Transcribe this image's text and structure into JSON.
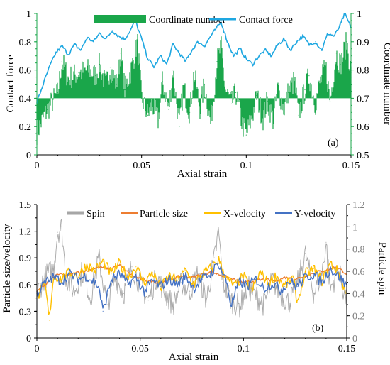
{
  "chart_data": [
    {
      "type": "area+line",
      "panel_label": "(a)",
      "xlabel": "Axial strain",
      "ylabel_left": "Contact force",
      "ylabel_right": "Coordinate number",
      "xlim": [
        0,
        0.15
      ],
      "ylim_left": [
        0,
        1
      ],
      "ylim_right": [
        0.5,
        1
      ],
      "x_ticks": [
        "0",
        "0.05",
        "0.1",
        "0.15"
      ],
      "y_ticks_left": [
        "0",
        "0.2",
        "0.4",
        "0.6",
        "0.8",
        "1"
      ],
      "y_ticks_right": [
        "0.5",
        "0.6",
        "0.7",
        "0.8",
        "0.9",
        "1"
      ],
      "legend_position": "top",
      "legend": [
        "Coordinate number",
        "Contact force"
      ],
      "baseline_right": 0.7,
      "series": [
        {
          "name": "Coordinate number",
          "axis": "right",
          "style": "fill-from-baseline",
          "color": "#1aa64a",
          "x": [
            0.0,
            0.005,
            0.01,
            0.012,
            0.015,
            0.02,
            0.025,
            0.028,
            0.03,
            0.033,
            0.035,
            0.038,
            0.04,
            0.042,
            0.045,
            0.048,
            0.05,
            0.053,
            0.055,
            0.058,
            0.06,
            0.063,
            0.065,
            0.068,
            0.07,
            0.073,
            0.075,
            0.078,
            0.08,
            0.083,
            0.086,
            0.088,
            0.09,
            0.093,
            0.095,
            0.098,
            0.1,
            0.103,
            0.105,
            0.108,
            0.11,
            0.113,
            0.115,
            0.118,
            0.12,
            0.123,
            0.125,
            0.128,
            0.13,
            0.133,
            0.135,
            0.138,
            0.14,
            0.143,
            0.145,
            0.148,
            0.15
          ],
          "y": [
            0.58,
            0.66,
            0.72,
            0.83,
            0.77,
            0.79,
            0.8,
            0.78,
            0.82,
            0.74,
            0.81,
            0.75,
            0.86,
            0.73,
            0.8,
            0.9,
            0.7,
            0.64,
            0.68,
            0.62,
            0.76,
            0.66,
            0.8,
            0.6,
            0.74,
            0.65,
            0.79,
            0.66,
            0.75,
            0.61,
            0.83,
            0.88,
            0.73,
            0.68,
            0.72,
            0.61,
            0.57,
            0.64,
            0.71,
            0.63,
            0.69,
            0.62,
            0.74,
            0.66,
            0.72,
            0.76,
            0.64,
            0.73,
            0.78,
            0.68,
            0.75,
            0.81,
            0.69,
            0.86,
            0.82,
            0.9,
            0.79
          ]
        },
        {
          "name": "Contact force",
          "axis": "left",
          "style": "line",
          "color": "#1ea7e1",
          "x": [
            0.0,
            0.003,
            0.006,
            0.009,
            0.012,
            0.015,
            0.018,
            0.021,
            0.024,
            0.027,
            0.03,
            0.033,
            0.036,
            0.039,
            0.042,
            0.045,
            0.047,
            0.05,
            0.053,
            0.056,
            0.059,
            0.062,
            0.065,
            0.068,
            0.071,
            0.074,
            0.077,
            0.08,
            0.083,
            0.086,
            0.088,
            0.091,
            0.094,
            0.097,
            0.1,
            0.103,
            0.106,
            0.109,
            0.112,
            0.115,
            0.118,
            0.121,
            0.124,
            0.127,
            0.13,
            0.133,
            0.136,
            0.139,
            0.142,
            0.145,
            0.147,
            0.15
          ],
          "y": [
            0.37,
            0.5,
            0.62,
            0.72,
            0.77,
            0.71,
            0.78,
            0.74,
            0.83,
            0.8,
            0.86,
            0.82,
            0.88,
            0.84,
            0.82,
            0.89,
            0.95,
            0.82,
            0.68,
            0.62,
            0.7,
            0.64,
            0.78,
            0.72,
            0.66,
            0.74,
            0.8,
            0.77,
            0.84,
            0.9,
            0.94,
            0.8,
            0.7,
            0.75,
            0.68,
            0.64,
            0.7,
            0.74,
            0.7,
            0.78,
            0.82,
            0.74,
            0.8,
            0.84,
            0.78,
            0.8,
            0.74,
            0.86,
            0.84,
            0.92,
            1.0,
            0.9
          ]
        }
      ]
    },
    {
      "type": "line",
      "panel_label": "(b)",
      "xlabel": "Axial strain",
      "ylabel_left": "Particle size/velocity",
      "ylabel_right": "Particle spin",
      "xlim": [
        0,
        0.15
      ],
      "ylim_left": [
        0,
        1.5
      ],
      "ylim_right": [
        0,
        1.2
      ],
      "x_ticks": [
        "0",
        "0.05",
        "0.1",
        "0.15"
      ],
      "y_ticks_left": [
        "0",
        "0.3",
        "0.6",
        "0.9",
        "1.2",
        "1.5"
      ],
      "y_ticks_right": [
        "0",
        "0.2",
        "0.4",
        "0.6",
        "0.8",
        "1",
        "1.2"
      ],
      "legend_position": "top",
      "legend": [
        "Spin",
        "Particle size",
        "X-velocity",
        "Y-velocity"
      ],
      "series": [
        {
          "name": "Spin",
          "axis": "right",
          "color": "#a6a6a6",
          "x": [
            0.0,
            0.004,
            0.008,
            0.01,
            0.012,
            0.014,
            0.018,
            0.022,
            0.026,
            0.03,
            0.034,
            0.038,
            0.042,
            0.046,
            0.05,
            0.054,
            0.058,
            0.062,
            0.066,
            0.07,
            0.074,
            0.078,
            0.082,
            0.086,
            0.088,
            0.09,
            0.094,
            0.098,
            0.102,
            0.106,
            0.11,
            0.114,
            0.118,
            0.122,
            0.126,
            0.13,
            0.134,
            0.138,
            0.14,
            0.142,
            0.146,
            0.15
          ],
          "y": [
            0.4,
            0.55,
            0.62,
            0.95,
            1.0,
            0.55,
            0.42,
            0.6,
            0.36,
            0.72,
            0.3,
            0.55,
            0.4,
            0.64,
            0.48,
            0.34,
            0.56,
            0.4,
            0.3,
            0.5,
            0.42,
            0.58,
            0.34,
            0.72,
            0.96,
            0.5,
            0.34,
            0.28,
            0.46,
            0.38,
            0.3,
            0.52,
            0.4,
            0.32,
            0.48,
            0.76,
            0.4,
            0.58,
            0.86,
            0.44,
            0.62,
            0.3
          ]
        },
        {
          "name": "Particle size",
          "axis": "left",
          "color": "#ed7d31",
          "x": [
            0.0,
            0.005,
            0.01,
            0.015,
            0.02,
            0.025,
            0.03,
            0.035,
            0.04,
            0.045,
            0.05,
            0.055,
            0.06,
            0.065,
            0.07,
            0.075,
            0.08,
            0.085,
            0.09,
            0.095,
            0.1,
            0.105,
            0.11,
            0.115,
            0.12,
            0.125,
            0.13,
            0.135,
            0.14,
            0.145,
            0.15
          ],
          "y": [
            0.52,
            0.62,
            0.72,
            0.7,
            0.74,
            0.76,
            0.8,
            0.78,
            0.82,
            0.72,
            0.66,
            0.64,
            0.62,
            0.66,
            0.7,
            0.68,
            0.72,
            0.74,
            0.7,
            0.66,
            0.62,
            0.64,
            0.66,
            0.64,
            0.68,
            0.66,
            0.7,
            0.74,
            0.76,
            0.8,
            0.72
          ]
        },
        {
          "name": "X-velocity",
          "axis": "left",
          "color": "#ffc000",
          "x": [
            0.0,
            0.004,
            0.006,
            0.008,
            0.012,
            0.016,
            0.02,
            0.024,
            0.028,
            0.032,
            0.036,
            0.04,
            0.044,
            0.048,
            0.052,
            0.056,
            0.06,
            0.064,
            0.068,
            0.072,
            0.076,
            0.08,
            0.084,
            0.088,
            0.092,
            0.096,
            0.1,
            0.104,
            0.108,
            0.112,
            0.116,
            0.12,
            0.124,
            0.126,
            0.13,
            0.134,
            0.138,
            0.142,
            0.146,
            0.15
          ],
          "y": [
            0.45,
            0.6,
            0.2,
            0.7,
            0.66,
            0.74,
            0.7,
            0.82,
            0.76,
            0.86,
            0.72,
            0.84,
            0.68,
            0.8,
            0.62,
            0.74,
            0.56,
            0.7,
            0.64,
            0.76,
            0.6,
            0.72,
            0.78,
            0.88,
            0.66,
            0.58,
            0.7,
            0.52,
            0.74,
            0.62,
            0.7,
            0.58,
            0.68,
            0.4,
            0.72,
            0.78,
            0.64,
            0.84,
            0.74,
            0.48
          ]
        },
        {
          "name": "Y-velocity",
          "axis": "left",
          "color": "#4472c4",
          "x": [
            0.0,
            0.004,
            0.008,
            0.012,
            0.016,
            0.02,
            0.024,
            0.028,
            0.03,
            0.032,
            0.036,
            0.04,
            0.044,
            0.048,
            0.052,
            0.056,
            0.06,
            0.064,
            0.068,
            0.072,
            0.076,
            0.08,
            0.084,
            0.088,
            0.092,
            0.094,
            0.098,
            0.102,
            0.106,
            0.11,
            0.114,
            0.118,
            0.122,
            0.126,
            0.13,
            0.134,
            0.138,
            0.142,
            0.146,
            0.15
          ],
          "y": [
            0.5,
            0.62,
            0.68,
            0.64,
            0.72,
            0.66,
            0.7,
            0.62,
            0.58,
            0.3,
            0.66,
            0.72,
            0.6,
            0.68,
            0.52,
            0.64,
            0.58,
            0.66,
            0.6,
            0.7,
            0.56,
            0.66,
            0.72,
            0.84,
            0.62,
            0.36,
            0.64,
            0.58,
            0.66,
            0.56,
            0.62,
            0.54,
            0.64,
            0.58,
            0.68,
            0.72,
            0.62,
            0.78,
            0.7,
            0.58
          ]
        }
      ]
    }
  ]
}
